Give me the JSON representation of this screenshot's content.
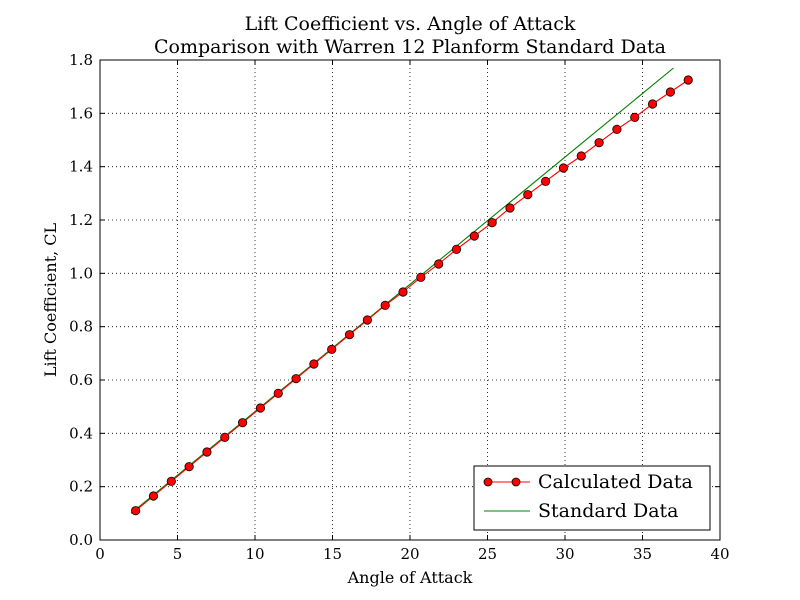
{
  "chart_data": {
    "type": "line",
    "title": "Lift Coefficient vs. Angle of Attack",
    "subtitle": "Comparison with Warren 12 Planform Standard Data",
    "xlabel": "Angle of Attack",
    "ylabel": "Lift Coefficient, CL",
    "xlim": [
      0,
      40
    ],
    "ylim": [
      0.0,
      1.8
    ],
    "x_ticks": [
      "0",
      "5",
      "10",
      "15",
      "20",
      "25",
      "30",
      "35",
      "40"
    ],
    "y_ticks": [
      "0.0",
      "0.2",
      "0.4",
      "0.6",
      "0.8",
      "1.0",
      "1.2",
      "1.4",
      "1.6",
      "1.8"
    ],
    "grid": true,
    "legend_position": "bottom-right",
    "series": [
      {
        "name": "Calculated Data",
        "color": "#ff0000",
        "marker": "circle",
        "x": [
          2.3,
          3.45,
          4.6,
          5.75,
          6.9,
          8.05,
          9.2,
          10.35,
          11.5,
          12.65,
          13.8,
          14.95,
          16.1,
          17.25,
          18.4,
          19.55,
          20.7,
          21.85,
          23.0,
          24.15,
          25.3,
          26.45,
          27.6,
          28.75,
          29.9,
          31.05,
          32.2,
          33.35,
          34.5,
          35.65,
          36.8,
          37.95
        ],
        "y": [
          0.11,
          0.165,
          0.22,
          0.275,
          0.33,
          0.385,
          0.44,
          0.495,
          0.55,
          0.605,
          0.66,
          0.715,
          0.77,
          0.825,
          0.88,
          0.93,
          0.985,
          1.035,
          1.09,
          1.14,
          1.19,
          1.245,
          1.295,
          1.345,
          1.395,
          1.44,
          1.49,
          1.54,
          1.585,
          1.635,
          1.68,
          1.725
        ]
      },
      {
        "name": "Standard Data",
        "color": "#008000",
        "marker": "none",
        "x": [
          2.0,
          37.0
        ],
        "y": [
          0.1,
          1.77
        ]
      }
    ]
  }
}
